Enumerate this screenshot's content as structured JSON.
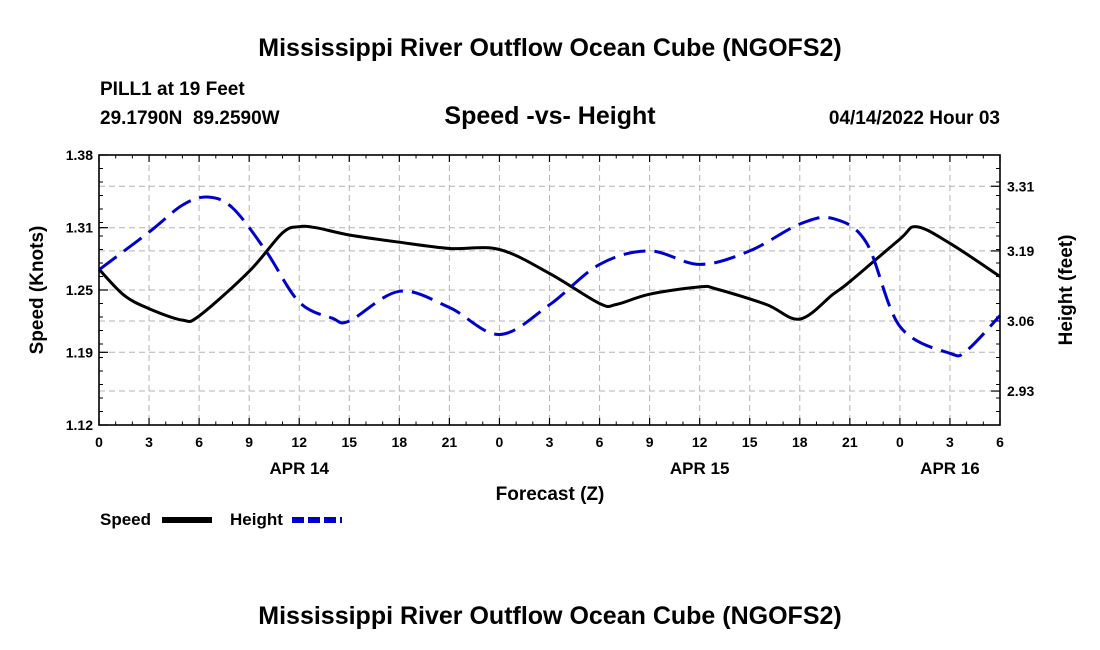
{
  "chart_data": {
    "type": "line",
    "title": "Mississippi River Outflow Ocean Cube (NGOFS2)",
    "footer_title": "Mississippi River Outflow Ocean Cube (NGOFS2)",
    "subtitle": "Speed -vs- Height",
    "station": "PILL1 at 19 Feet",
    "location": "29.1790N  89.2590W",
    "forecast_time": "04/14/2022 Hour 03",
    "xlabel": "Forecast (Z)",
    "ylabel_left": "Speed (Knots)",
    "ylabel_right": "Height (feet)",
    "x_range": [
      0,
      54
    ],
    "x_ticks": [
      0,
      3,
      6,
      9,
      12,
      15,
      18,
      21,
      24,
      27,
      30,
      33,
      36,
      39,
      42,
      45,
      48,
      51,
      54
    ],
    "x_tick_labels": [
      "0",
      "3",
      "6",
      "9",
      "12",
      "15",
      "18",
      "21",
      "0",
      "3",
      "6",
      "9",
      "12",
      "15",
      "18",
      "21",
      "0",
      "3",
      "6"
    ],
    "date_labels": [
      {
        "x": 12,
        "text": "APR 14"
      },
      {
        "x": 36,
        "text": "APR 15"
      },
      {
        "x": 51,
        "text": "APR 16"
      }
    ],
    "y_left": {
      "range": [
        1.12,
        1.38
      ],
      "ticks": [
        1.12,
        1.19,
        1.25,
        1.31,
        1.38
      ],
      "tick_labels": [
        "1.12",
        "1.19",
        "1.25",
        "1.31",
        "1.38"
      ]
    },
    "y_right": {
      "range": [
        2.867,
        3.368
      ],
      "ticks": [
        2.93,
        3.06,
        3.19,
        3.31
      ],
      "tick_labels": [
        "2.93",
        "3.06",
        "3.19",
        "3.31"
      ]
    },
    "grid": true,
    "legend": [
      {
        "name": "Speed",
        "color": "#000000",
        "dash": "solid"
      },
      {
        "name": "Height",
        "color": "#0000cc",
        "dash": "dashed"
      }
    ],
    "series": [
      {
        "name": "Speed",
        "axis": "left",
        "color": "#000000",
        "dash": "solid",
        "x": [
          0,
          1.5,
          3,
          5,
          6,
          9,
          11,
          12,
          13,
          15,
          18,
          21,
          24,
          27,
          30,
          31,
          33,
          36,
          37,
          40,
          42,
          44,
          45,
          48,
          49,
          51,
          54
        ],
        "y": [
          1.27,
          1.245,
          1.232,
          1.221,
          1.225,
          1.268,
          1.305,
          1.311,
          1.31,
          1.303,
          1.296,
          1.29,
          1.289,
          1.266,
          1.237,
          1.236,
          1.246,
          1.253,
          1.251,
          1.236,
          1.222,
          1.246,
          1.258,
          1.299,
          1.311,
          1.295,
          1.263
        ]
      },
      {
        "name": "Height",
        "axis": "right",
        "color": "#0000cc",
        "dash": "dashed",
        "x": [
          0,
          3,
          5,
          6.5,
          8,
          10,
          12,
          14,
          15,
          18,
          21,
          24,
          27,
          30,
          33,
          36,
          39,
          42,
          44,
          46,
          48,
          51,
          52,
          54
        ],
        "y": [
          3.155,
          3.225,
          3.275,
          3.29,
          3.27,
          3.19,
          3.095,
          3.065,
          3.06,
          3.115,
          3.085,
          3.035,
          3.09,
          3.165,
          3.19,
          3.165,
          3.19,
          3.24,
          3.25,
          3.205,
          3.05,
          3.0,
          3.005,
          3.07
        ]
      }
    ]
  }
}
